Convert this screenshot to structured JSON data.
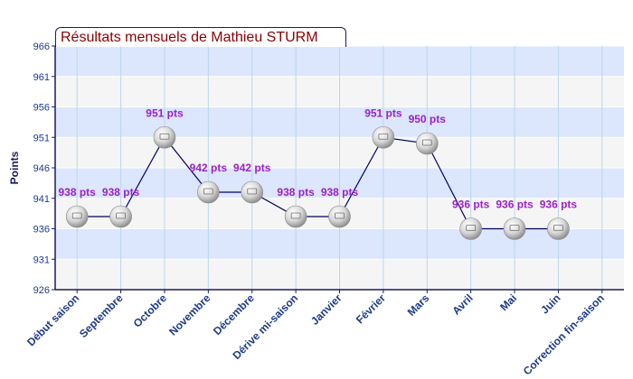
{
  "chart_data": {
    "type": "line",
    "title": "Résultats mensuels de Mathieu STURM",
    "xlabel": "",
    "ylabel": "Points",
    "ylim": [
      926,
      966
    ],
    "yticks": [
      926,
      931,
      936,
      941,
      946,
      951,
      956,
      961,
      966
    ],
    "categories": [
      "Début saison",
      "Septembre",
      "Octobre",
      "Novembre",
      "Décembre",
      "Dérive mi-saison",
      "Janvier",
      "Février",
      "Mars",
      "Avril",
      "Mai",
      "Juin",
      "Correction fin-saison"
    ],
    "series": [
      {
        "values": [
          938,
          938,
          951,
          942,
          942,
          938,
          938,
          951,
          950,
          936,
          936,
          936,
          null
        ],
        "labels": [
          "938 pts",
          "938 pts",
          "951 pts",
          "942 pts",
          "942 pts",
          "938 pts",
          "938 pts",
          "951 pts",
          "950 pts",
          "936 pts",
          "936 pts",
          "936 pts",
          null
        ]
      }
    ],
    "grid": true,
    "colors": {
      "band_light": "#f5f5f5",
      "band_blue": "#dce6fd",
      "axis": "#1b1b5e",
      "axis_text": "#1c3a8c",
      "data_label": "#9a22c8",
      "line": "#000066",
      "title_text": "#8a0000"
    }
  }
}
